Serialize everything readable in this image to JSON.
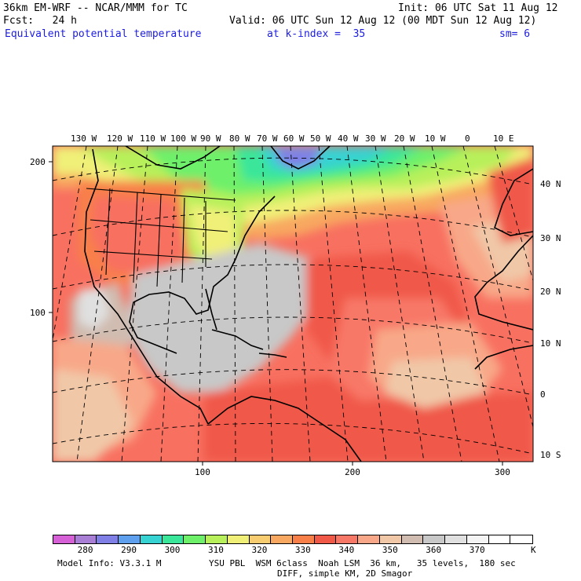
{
  "header": {
    "model_title": "36km EM-WRF -- NCAR/MMM for TC",
    "init": "Init: 06 UTC Sat 11 Aug 12",
    "fcst": "Fcst:   24 h",
    "valid": "Valid: 06 UTC Sun 12 Aug 12 (00 MDT Sun 12 Aug 12)",
    "field": "Equivalent potential temperature",
    "level": "at k-index =  35",
    "smooth": "sm= 6"
  },
  "map": {
    "lon_labels": [
      "130 W",
      "120 W",
      "110 W",
      "100 W",
      "90 W",
      "80 W",
      "70 W",
      "60 W",
      "50 W",
      "40 W",
      "30 W",
      "20 W",
      "10 W",
      "0",
      "10 E"
    ],
    "lat_labels": [
      "40 N",
      "30 N",
      "20 N",
      "10 N",
      "0",
      "10 S"
    ],
    "grid_y_labels": [
      "200",
      "100"
    ],
    "grid_x_labels": [
      "100",
      "200",
      "300"
    ]
  },
  "colorbar": {
    "colors": [
      "#d660d6",
      "#a97fd6",
      "#7f7fe6",
      "#5fa0ee",
      "#37d2d2",
      "#3ae69a",
      "#6ef06a",
      "#b7f05a",
      "#f0f078",
      "#f8cc70",
      "#f8a860",
      "#f88048",
      "#f05848",
      "#f87868",
      "#f8a888",
      "#f0c8a8",
      "#d0bcb0",
      "#c8c8c8",
      "#e0e0e0",
      "#f4f4f4",
      "#ffffff",
      "#ffffff"
    ],
    "labels": [
      "280",
      "290",
      "300",
      "310",
      "320",
      "330",
      "340",
      "350",
      "360",
      "370"
    ],
    "unit": "K"
  },
  "footer": {
    "model_info": "Model Info: V3.3.1 M",
    "physics": "YSU PBL  WSM 6class  Noah LSM  36 km,   35 levels,  180 sec",
    "diff": "DIFF, simple KM, 2D Smagor"
  }
}
